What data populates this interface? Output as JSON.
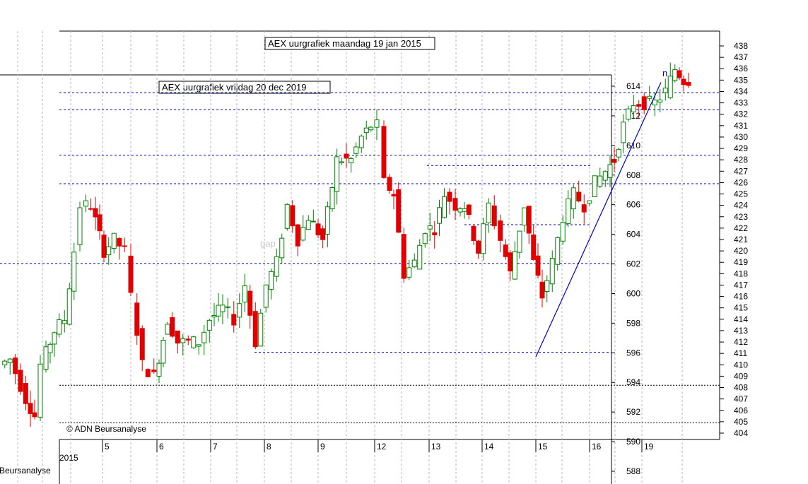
{
  "chart_data": [
    {
      "type": "candlestick",
      "title": "AEX uurgrafiek maandag 19 jan 2015",
      "copyright": "© ADN Beursanalyse",
      "ylim": [
        403.5,
        438.5
      ],
      "y_ticks": [
        404,
        405,
        406,
        407,
        408,
        409,
        410,
        411,
        412,
        413,
        414,
        415,
        416,
        417,
        418,
        419,
        420,
        421,
        422,
        423,
        424,
        425,
        426,
        427,
        428,
        429,
        430,
        431,
        432,
        433,
        434,
        435,
        436,
        437,
        438
      ],
      "x_labels": [
        "5",
        "6",
        "7",
        "8",
        "9",
        "12",
        "13",
        "14",
        "15",
        "16",
        "19"
      ],
      "year_label": "2015",
      "annotations": [
        "gap",
        "n"
      ],
      "reference_levels": [
        433.9,
        432.4,
        428.4,
        425.9,
        418.9,
        411.1,
        408.2,
        404.9
      ],
      "trendline": {
        "from": [
          15,
          410.7
        ],
        "to": [
          19,
          434.8
        ]
      }
    },
    {
      "type": "candlestick",
      "title": "AEX uurgrafiek vrijdag 20 dec 2019",
      "copyright": "Beursanalyse",
      "ylim": [
        587,
        616
      ],
      "y_ticks": [
        588,
        590,
        592,
        594,
        596,
        598,
        600,
        602,
        604,
        606,
        608,
        610,
        612,
        614
      ],
      "annotations": [
        "gap"
      ]
    }
  ]
}
